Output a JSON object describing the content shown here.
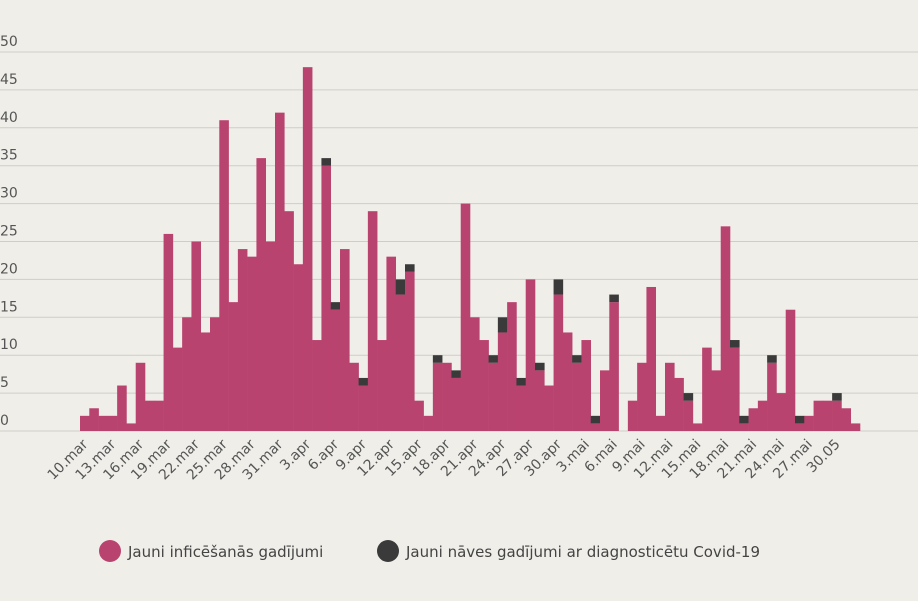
{
  "chart_data": {
    "type": "stacked_bar",
    "categories": [
      "10.mar",
      null,
      null,
      "13.mar",
      null,
      null,
      "16.mar",
      null,
      null,
      "19.mar",
      null,
      null,
      "22.mar",
      null,
      null,
      "25.mar",
      null,
      null,
      "28.mar",
      null,
      null,
      "31.mar",
      null,
      null,
      "3.apr",
      null,
      null,
      "6.apr",
      null,
      null,
      "9.apr",
      null,
      null,
      "12.apr",
      null,
      null,
      "15.apr",
      null,
      null,
      "18.apr",
      null,
      null,
      "21.apr",
      null,
      null,
      "24.apr",
      null,
      null,
      "27.apr",
      null,
      null,
      "30.apr",
      null,
      null,
      "3.mai",
      null,
      null,
      "6.mai",
      null,
      null,
      "9.mai",
      null,
      null,
      "12.mai",
      null,
      null,
      "15.mai",
      null,
      null,
      "18.mai",
      null,
      null,
      "21.mai",
      null,
      null,
      "24.mai",
      null,
      null,
      "27.mai",
      null,
      null,
      "30.05",
      null,
      null
    ],
    "series": [
      {
        "name": "Jauni inficēšanās gadījumi",
        "color": "#b9436f",
        "values": [
          2,
          3,
          2,
          2,
          6,
          1,
          9,
          4,
          4,
          26,
          11,
          15,
          25,
          13,
          15,
          41,
          17,
          24,
          23,
          36,
          25,
          42,
          29,
          22,
          48,
          12,
          35,
          16,
          24,
          9,
          6,
          29,
          12,
          23,
          18,
          21,
          4,
          2,
          9,
          9,
          7,
          30,
          15,
          12,
          9,
          13,
          17,
          6,
          20,
          8,
          6,
          18,
          13,
          9,
          12,
          1,
          8,
          17,
          0,
          4,
          9,
          19,
          2,
          9,
          7,
          4,
          1,
          11,
          8,
          27,
          11,
          1,
          3,
          4,
          9,
          5,
          16,
          1,
          2,
          4,
          4,
          4,
          3,
          1
        ]
      },
      {
        "name": "Jauni nāves gadījumi ar diagnosticētu Covid-19",
        "color": "#3a3a3a",
        "values": [
          0,
          0,
          0,
          0,
          0,
          0,
          0,
          0,
          0,
          0,
          0,
          0,
          0,
          0,
          0,
          0,
          0,
          0,
          0,
          0,
          0,
          0,
          0,
          0,
          0,
          0,
          1,
          1,
          0,
          0,
          1,
          0,
          0,
          0,
          2,
          1,
          0,
          0,
          1,
          0,
          1,
          0,
          0,
          0,
          1,
          2,
          0,
          1,
          0,
          1,
          0,
          2,
          0,
          1,
          0,
          1,
          0,
          1,
          0,
          0,
          0,
          0,
          0,
          0,
          0,
          1,
          0,
          0,
          0,
          0,
          1,
          1,
          0,
          0,
          1,
          0,
          0,
          1,
          0,
          0,
          0,
          1,
          0,
          0
        ]
      }
    ],
    "ylim": [
      0,
      50
    ],
    "yticks": [
      0,
      5,
      10,
      15,
      20,
      25,
      30,
      35,
      40,
      45,
      50
    ],
    "grid": true
  }
}
